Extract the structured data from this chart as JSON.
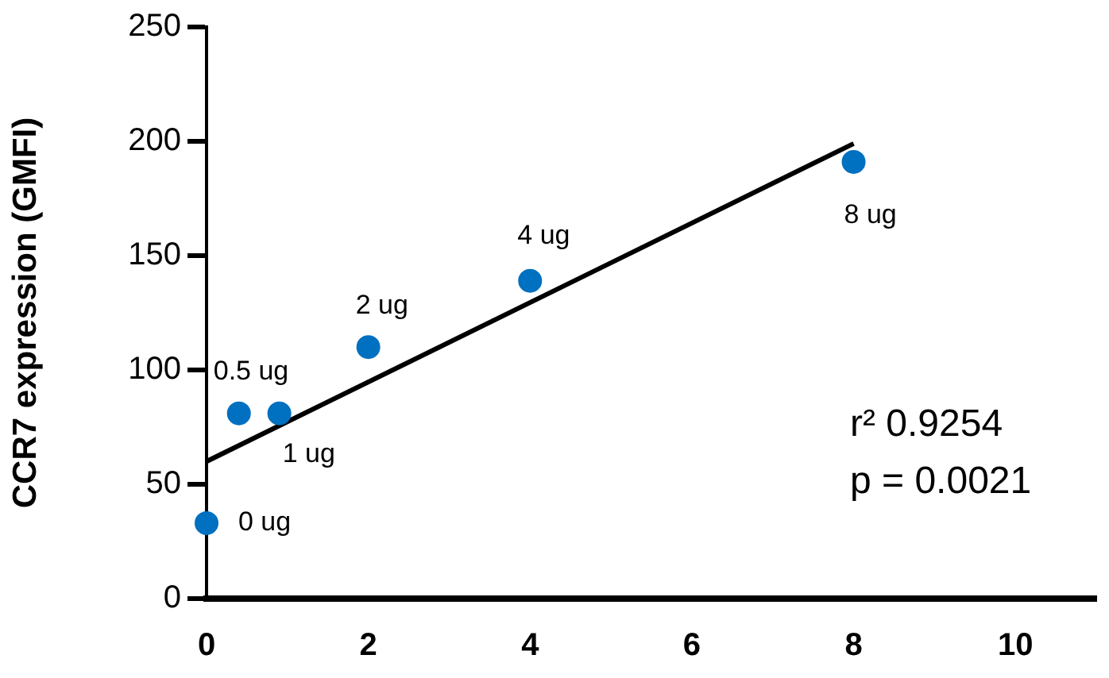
{
  "chart_data": {
    "type": "scatter",
    "ylabel": "CCR7 expression (GMFI)",
    "xlim": [
      0,
      11
    ],
    "xticks": [
      0,
      2,
      4,
      6,
      8,
      10
    ],
    "ylim": [
      0,
      250
    ],
    "yticks": [
      0,
      50,
      100,
      150,
      200,
      250
    ],
    "grid": false,
    "legend": false,
    "marker": "circle",
    "series": [
      {
        "color": "#0070c0",
        "x": [
          0,
          0.4,
          0.9,
          2,
          4,
          8
        ],
        "values": [
          33,
          81,
          81,
          110,
          139,
          191
        ]
      },
      {
        "type": "line",
        "color": "#000000",
        "marker": "none",
        "line_style": "solid",
        "x": [
          0,
          8
        ],
        "values": [
          60,
          199
        ]
      }
    ],
    "annotations": [
      {
        "text": "0 ug",
        "x": 0,
        "y": 33
      },
      {
        "text": "0.5 ug",
        "x": 0.4,
        "y": 81
      },
      {
        "text": "1 ug",
        "x": 0.9,
        "y": 81
      },
      {
        "text": "2 ug",
        "x": 2,
        "y": 110
      },
      {
        "text": "4 ug",
        "x": 4,
        "y": 139
      },
      {
        "text": "8 ug",
        "x": 8,
        "y": 191
      },
      "r² 0.9254",
      "p = 0.0021"
    ]
  }
}
